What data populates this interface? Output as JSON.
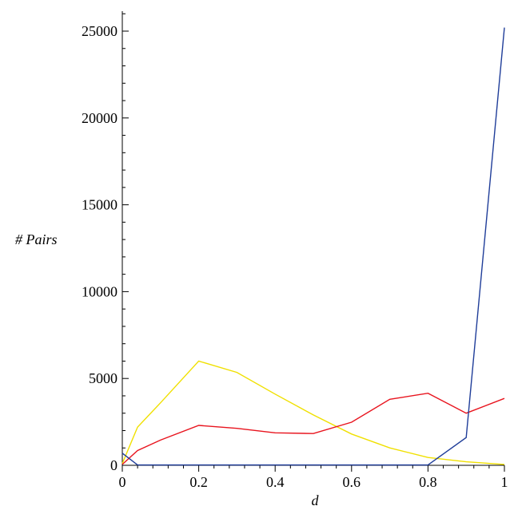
{
  "chart_data": {
    "type": "line",
    "title": "",
    "xlabel": "d",
    "ylabel": "# Pairs",
    "xlim": [
      0,
      1
    ],
    "ylim": [
      0,
      26000
    ],
    "grid": false,
    "legend": "none",
    "x_ticks": [
      0,
      0.2,
      0.4,
      0.6,
      0.8,
      1
    ],
    "x_tick_labels": [
      "0",
      "0.2",
      "0.4",
      "0.6",
      "0.8",
      "1"
    ],
    "y_ticks": [
      0,
      5000,
      10000,
      15000,
      20000,
      25000
    ],
    "y_tick_labels": [
      "0",
      "5000",
      "10000",
      "15000",
      "20000",
      "25000"
    ],
    "series": [
      {
        "color": "#f0e000",
        "x": [
          0,
          0.04,
          0.1,
          0.2,
          0.3,
          0.4,
          0.5,
          0.6,
          0.7,
          0.8,
          0.9,
          1.0
        ],
        "values": [
          100,
          2200,
          3600,
          6000,
          5350,
          4100,
          2900,
          1800,
          1000,
          450,
          200,
          50
        ]
      },
      {
        "color": "#e8141e",
        "x": [
          0,
          0.04,
          0.1,
          0.2,
          0.3,
          0.4,
          0.5,
          0.6,
          0.7,
          0.8,
          0.9,
          1.0
        ],
        "values": [
          50,
          850,
          1450,
          2300,
          2130,
          1870,
          1830,
          2480,
          3800,
          4150,
          3000,
          3850
        ]
      },
      {
        "color": "#1f3d99",
        "x": [
          0,
          0.04,
          0.1,
          0.2,
          0.3,
          0.4,
          0.5,
          0.6,
          0.7,
          0.8,
          0.9,
          1.0
        ],
        "values": [
          700,
          20,
          20,
          20,
          20,
          20,
          20,
          20,
          20,
          20,
          1600,
          25200
        ]
      }
    ]
  }
}
